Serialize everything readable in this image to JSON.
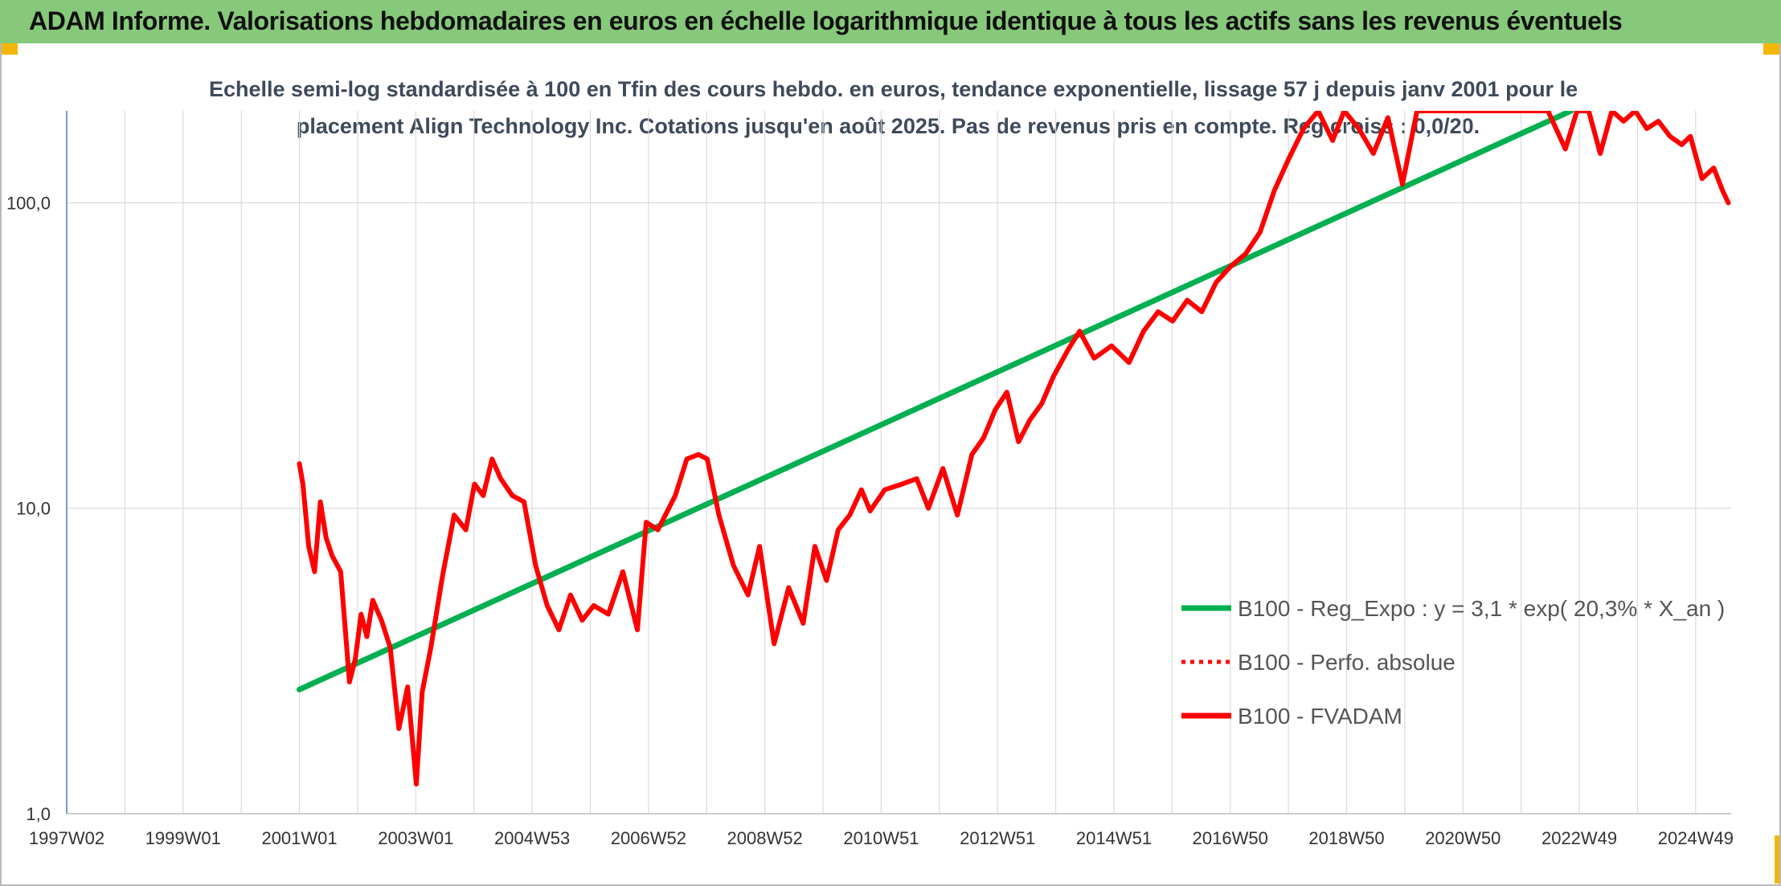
{
  "header": {
    "title": "ADAM Informe. Valorisations hebdomadaires en euros en échelle logarithmique identique à tous les actifs sans les revenus éventuels"
  },
  "colors": {
    "header_bg": "#87c97a",
    "trend": "#00b050",
    "price": "#ff0000",
    "accent": "#f2b705"
  },
  "chart_data": {
    "type": "line",
    "title_lines": [
      "Echelle semi-log standardisée à 100 en Tfin des cours hebdo. en euros, tendance exponentielle, lissage 57 j depuis janv 2001 pour le",
      "placement Align Technology Inc. Cotations jusqu'en août 2025. Pas de revenus pris en compte. Reg croiss : 0,0/20."
    ],
    "y_scale": "log",
    "ylim": [
      1,
      200
    ],
    "y_ticks": [
      "1,0",
      "10,0",
      "100,0"
    ],
    "xlim": [
      1997.04,
      2025.65
    ],
    "x_ticks": [
      {
        "label": "1997W02",
        "x": 1997.04
      },
      {
        "label": "1999W01",
        "x": 1999.04
      },
      {
        "label": "2001W01",
        "x": 2001.04
      },
      {
        "label": "2003W01",
        "x": 2003.04
      },
      {
        "label": "2004W53",
        "x": 2005.04
      },
      {
        "label": "2006W52",
        "x": 2007.04
      },
      {
        "label": "2008W52",
        "x": 2009.04
      },
      {
        "label": "2010W51",
        "x": 2011.04
      },
      {
        "label": "2012W51",
        "x": 2013.04
      },
      {
        "label": "2014W51",
        "x": 2015.04
      },
      {
        "label": "2016W50",
        "x": 2017.04
      },
      {
        "label": "2018W50",
        "x": 2019.04
      },
      {
        "label": "2020W50",
        "x": 2021.04
      },
      {
        "label": "2022W49",
        "x": 2023.04
      },
      {
        "label": "2024W49",
        "x": 2025.04
      }
    ],
    "grid": true,
    "legend_position": "bottom-right",
    "series": [
      {
        "name": "B100 - Reg_Expo : y = 3,1 * exp( 20,3% *  X_an )",
        "color": "#00b050",
        "style": "solid",
        "x": [
          2001.04,
          2022.9
        ],
        "y": [
          2.55,
          200
        ]
      },
      {
        "name": "B100 - Perfo. absolue",
        "color": "#ff0000",
        "style": "dotted",
        "x": [],
        "y": []
      },
      {
        "name": "B100 - FVADAM",
        "color": "#ff0000",
        "style": "solid",
        "x": [
          2001.04,
          2001.1,
          2001.2,
          2001.3,
          2001.4,
          2001.5,
          2001.6,
          2001.75,
          2001.9,
          2002.0,
          2002.1,
          2002.2,
          2002.3,
          2002.45,
          2002.6,
          2002.75,
          2002.9,
          2003.05,
          2003.15,
          2003.3,
          2003.5,
          2003.7,
          2003.9,
          2004.05,
          2004.2,
          2004.35,
          2004.5,
          2004.7,
          2004.9,
          2005.1,
          2005.3,
          2005.5,
          2005.7,
          2005.9,
          2006.1,
          2006.35,
          2006.6,
          2006.85,
          2007.0,
          2007.2,
          2007.5,
          2007.7,
          2007.9,
          2008.05,
          2008.25,
          2008.5,
          2008.75,
          2008.95,
          2009.2,
          2009.45,
          2009.7,
          2009.9,
          2010.1,
          2010.3,
          2010.5,
          2010.7,
          2010.85,
          2011.1,
          2011.4,
          2011.65,
          2011.85,
          2012.1,
          2012.35,
          2012.6,
          2012.8,
          2013.0,
          2013.2,
          2013.4,
          2013.6,
          2013.8,
          2014.0,
          2014.25,
          2014.45,
          2014.7,
          2015.0,
          2015.3,
          2015.55,
          2015.8,
          2016.05,
          2016.3,
          2016.55,
          2016.8,
          2017.05,
          2017.3,
          2017.55,
          2017.8,
          2018.05,
          2018.3,
          2018.55,
          2018.8,
          2019.0,
          2019.25,
          2019.5,
          2019.75,
          2020.0,
          2020.25,
          2020.4,
          2020.7,
          2021.0,
          2021.5,
          2022.0,
          2022.5,
          2022.8,
          2023.0,
          2023.2,
          2023.4,
          2023.6,
          2023.8,
          2024.0,
          2024.2,
          2024.4,
          2024.6,
          2024.8,
          2024.95,
          2025.15,
          2025.35,
          2025.5,
          2025.6
        ],
        "y": [
          14,
          12,
          7.5,
          6.2,
          10.5,
          8,
          7,
          6.2,
          2.7,
          3.2,
          4.5,
          3.8,
          5.0,
          4.3,
          3.5,
          1.9,
          2.6,
          1.25,
          2.5,
          3.5,
          6.0,
          9.5,
          8.5,
          12,
          11,
          14.5,
          12.5,
          11,
          10.5,
          6.5,
          4.8,
          4.0,
          5.2,
          4.3,
          4.8,
          4.5,
          6.2,
          4.0,
          9.0,
          8.5,
          11,
          14.5,
          15,
          14.5,
          9.5,
          6.5,
          5.2,
          7.5,
          3.6,
          5.5,
          4.2,
          7.5,
          5.8,
          8.5,
          9.5,
          11.5,
          9.8,
          11.5,
          12,
          12.5,
          10,
          13.5,
          9.5,
          15,
          17,
          21,
          24,
          16.5,
          19.5,
          22,
          27,
          33,
          38,
          31,
          34,
          30,
          38,
          44,
          41,
          48,
          44,
          55,
          62,
          68,
          80,
          110,
          140,
          175,
          200,
          160,
          200,
          175,
          145,
          190,
          115,
          200,
          200,
          200,
          200,
          200,
          200,
          200,
          150,
          200,
          200,
          145,
          200,
          185,
          200,
          175,
          185,
          165,
          155,
          165,
          120,
          130,
          110,
          100
        ]
      }
    ]
  }
}
